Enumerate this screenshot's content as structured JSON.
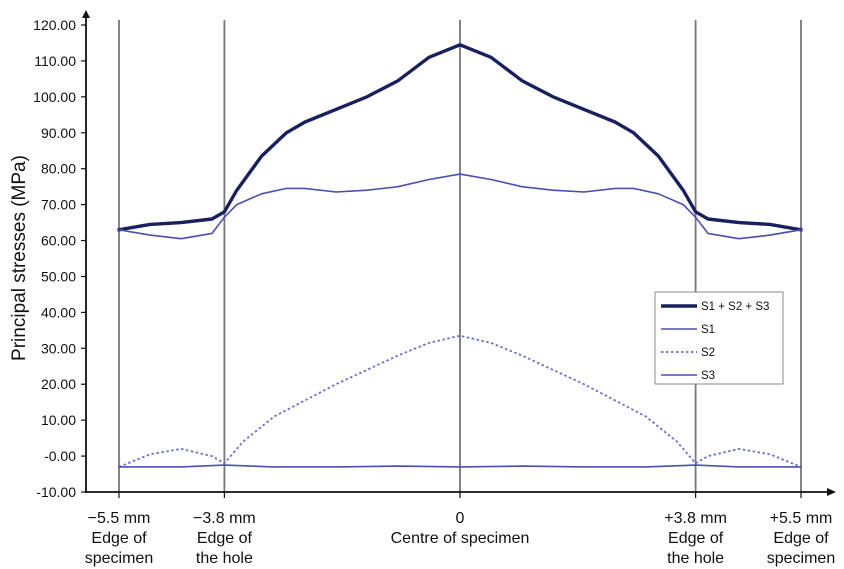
{
  "chart_data": {
    "type": "line",
    "title": "",
    "ylabel": "Principal stresses (MPa)",
    "xlabel": "",
    "ylim": [
      -10,
      120
    ],
    "yticks": [
      -10,
      0,
      10,
      20,
      30,
      40,
      50,
      60,
      70,
      80,
      90,
      100,
      110,
      120
    ],
    "ytick_labels": [
      "-10.00",
      "-0.00",
      "10.00",
      "20.00",
      "30.00",
      "40.00",
      "50.00",
      "60.00",
      "70.00",
      "80.00",
      "90.00",
      "100.00",
      "110.00",
      "120.00"
    ],
    "xlim": [
      -5.5,
      5.5
    ],
    "x_unit": "mm",
    "vertical_markers": [
      -5.5,
      -3.8,
      0,
      3.8,
      5.5
    ],
    "x_category_labels": [
      {
        "x": -5.5,
        "lines": [
          "−5.5 mm",
          "Edge of",
          "specimen"
        ]
      },
      {
        "x": -3.8,
        "lines": [
          "−3.8 mm",
          "Edge of",
          "the hole"
        ]
      },
      {
        "x": 0,
        "lines": [
          "0",
          "Centre of specimen"
        ]
      },
      {
        "x": 3.8,
        "lines": [
          "+3.8 mm",
          "Edge of",
          "the hole"
        ]
      },
      {
        "x": 5.5,
        "lines": [
          "+5.5 mm",
          "Edge of",
          "specimen"
        ]
      }
    ],
    "grid": false,
    "legend_position": "right",
    "series": [
      {
        "name": "S1 + S2 + S3",
        "color": "#1a1f5e",
        "style": "thick",
        "x": [
          -5.5,
          -5.0,
          -4.5,
          -4.0,
          -3.8,
          -3.6,
          -3.2,
          -2.8,
          -2.5,
          -2.0,
          -1.5,
          -1.0,
          -0.5,
          0,
          0.5,
          1.0,
          1.5,
          2.0,
          2.5,
          2.8,
          3.2,
          3.6,
          3.8,
          4.0,
          4.5,
          5.0,
          5.5
        ],
        "y": [
          63.0,
          64.5,
          65.0,
          66.0,
          68.0,
          74.0,
          83.5,
          90.0,
          93.0,
          96.5,
          100.0,
          104.5,
          111.0,
          114.5,
          111.0,
          104.5,
          100.0,
          96.5,
          93.0,
          90.0,
          83.5,
          74.0,
          68.0,
          66.0,
          65.0,
          64.5,
          63.0
        ]
      },
      {
        "name": "S1",
        "color": "#4a4fb0",
        "style": "solid",
        "x": [
          -5.5,
          -5.0,
          -4.5,
          -4.0,
          -3.8,
          -3.6,
          -3.2,
          -2.8,
          -2.5,
          -2.0,
          -1.5,
          -1.0,
          -0.5,
          0,
          0.5,
          1.0,
          1.5,
          2.0,
          2.5,
          2.8,
          3.2,
          3.6,
          3.8,
          4.0,
          4.5,
          5.0,
          5.5
        ],
        "y": [
          63.0,
          61.5,
          60.5,
          62.0,
          66.5,
          70.0,
          73.0,
          74.5,
          74.5,
          73.5,
          74.0,
          75.0,
          77.0,
          78.5,
          77.0,
          75.0,
          74.0,
          73.5,
          74.5,
          74.5,
          73.0,
          70.0,
          66.5,
          62.0,
          60.5,
          61.5,
          63.0
        ]
      },
      {
        "name": "S2",
        "color": "#6b70c8",
        "style": "dotted",
        "x": [
          -5.5,
          -5.0,
          -4.5,
          -4.0,
          -3.8,
          -3.5,
          -3.0,
          -2.5,
          -2.0,
          -1.5,
          -1.0,
          -0.5,
          0,
          0.5,
          1.0,
          1.5,
          2.0,
          2.5,
          3.0,
          3.5,
          3.8,
          4.0,
          4.5,
          5.0,
          5.5
        ],
        "y": [
          -3.0,
          0.5,
          2.0,
          0.0,
          -2.0,
          4.0,
          11.0,
          15.5,
          20.0,
          24.0,
          28.0,
          31.5,
          33.5,
          31.5,
          28.0,
          24.0,
          20.0,
          15.5,
          11.0,
          4.0,
          -2.0,
          0.0,
          2.0,
          0.5,
          -3.0
        ]
      },
      {
        "name": "S3",
        "color": "#4a4fb0",
        "style": "solid",
        "x": [
          -5.5,
          -4.5,
          -3.8,
          -3.0,
          -2.0,
          -1.0,
          0,
          1.0,
          2.0,
          3.0,
          3.8,
          4.5,
          5.5
        ],
        "y": [
          -3.0,
          -3.0,
          -2.5,
          -3.0,
          -3.0,
          -2.8,
          -3.0,
          -2.8,
          -3.0,
          -3.0,
          -2.5,
          -3.0,
          -3.0
        ]
      }
    ]
  }
}
